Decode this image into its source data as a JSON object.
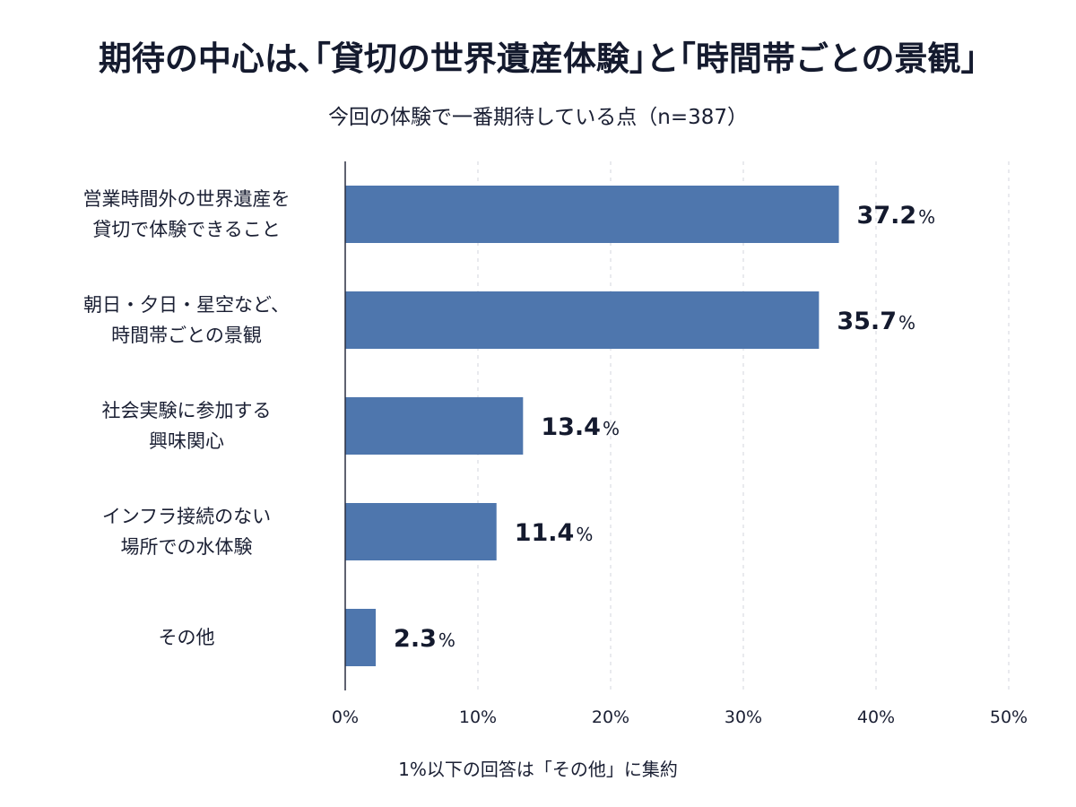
{
  "chart_data": {
    "type": "bar",
    "orientation": "horizontal",
    "title": "期待の中心は､｢貸切の世界遺産体験｣と｢時間帯ごとの景観｣",
    "subtitle": "今回の体験で一番期待している点（n=387）",
    "categories": [
      [
        "営業時間外の世界遺産を",
        "貸切で体験できること"
      ],
      [
        "朝日・夕日・星空など、",
        "時間帯ごとの景観"
      ],
      [
        "社会実験に参加する",
        "興味関心"
      ],
      [
        "インフラ接続のない",
        "場所での水体験"
      ],
      [
        "その他"
      ]
    ],
    "values": [
      37.2,
      35.7,
      13.4,
      11.4,
      2.3
    ],
    "value_labels": [
      "37.2",
      "35.7",
      "13.4",
      "11.4",
      "2.3"
    ],
    "value_unit": "%",
    "xlim": [
      0,
      50
    ],
    "xticks": [
      0,
      10,
      20,
      30,
      40,
      50
    ],
    "xtick_labels": [
      "0%",
      "10%",
      "20%",
      "30%",
      "40%",
      "50%"
    ],
    "grid": "vertical-dashed",
    "bar_color": "#4e76ad",
    "note": "1%以下の回答は「その他」に集約"
  }
}
